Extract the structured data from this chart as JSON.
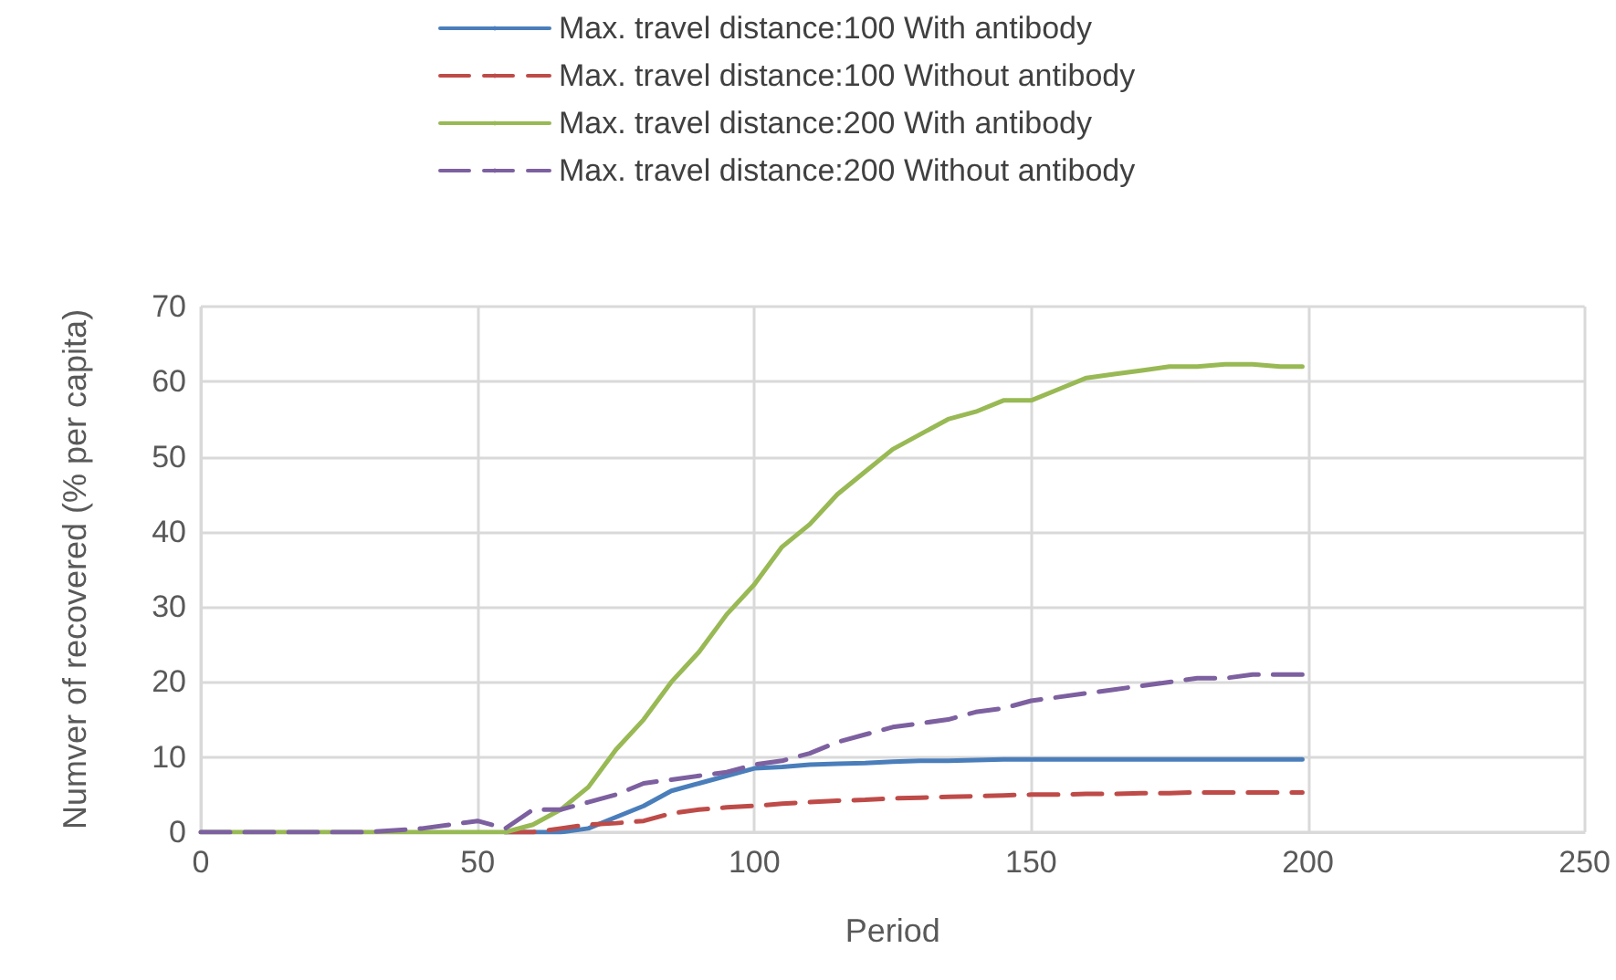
{
  "chart_data": {
    "type": "line",
    "xlabel": "Period",
    "ylabel": "Numver of recovered (% per capita)",
    "x": [
      0,
      10,
      20,
      30,
      40,
      50,
      55,
      60,
      65,
      70,
      75,
      80,
      85,
      90,
      95,
      100,
      105,
      110,
      115,
      120,
      125,
      130,
      135,
      140,
      145,
      150,
      155,
      160,
      165,
      170,
      175,
      180,
      185,
      190,
      195,
      199
    ],
    "series": [
      {
        "name": "Max. travel distance:100 With antibody",
        "color": "#4a7ebb",
        "line_style": "solid",
        "values": [
          null,
          null,
          null,
          null,
          null,
          null,
          0,
          0,
          0,
          0.5,
          2,
          3.5,
          5.5,
          6.5,
          7.5,
          8.5,
          8.7,
          9,
          9.1,
          9.2,
          9.4,
          9.5,
          9.5,
          9.6,
          9.7,
          9.7,
          9.7,
          9.7,
          9.7,
          9.7,
          9.7,
          9.7,
          9.7,
          9.7,
          9.7,
          9.7
        ]
      },
      {
        "name": "Max. travel distance:100 Without antibody",
        "color": "#be4b48",
        "line_style": "dashed",
        "values": [
          null,
          null,
          null,
          null,
          null,
          null,
          0,
          0,
          0.5,
          1,
          1.2,
          1.5,
          2.5,
          3,
          3.3,
          3.5,
          3.8,
          4,
          4.2,
          4.3,
          4.5,
          4.6,
          4.7,
          4.8,
          4.9,
          5,
          5,
          5.1,
          5.1,
          5.2,
          5.2,
          5.3,
          5.3,
          5.3,
          5.3,
          5.3
        ]
      },
      {
        "name": "Max. travel distance:200 With antibody",
        "color": "#98b954",
        "line_style": "solid",
        "values": [
          0,
          0,
          0,
          0,
          0,
          0,
          0,
          1,
          3,
          6,
          11,
          15,
          20,
          24,
          29,
          33,
          38,
          41,
          45,
          48,
          51,
          53,
          55,
          56,
          57.5,
          57.5,
          59,
          60.5,
          61,
          61.5,
          62,
          62,
          62.3,
          62.3,
          62,
          62
        ]
      },
      {
        "name": "Max. travel distance:200 Without antibody",
        "color": "#7d60a0",
        "line_style": "dashed",
        "values": [
          0,
          0,
          0,
          0,
          0.5,
          1.5,
          0.5,
          3,
          3,
          4,
          5,
          6.5,
          7,
          7.5,
          8,
          9,
          9.5,
          10.5,
          12,
          13,
          14,
          14.5,
          15,
          16,
          16.5,
          17.5,
          18,
          18.5,
          19,
          19.5,
          20,
          20.5,
          20.5,
          21,
          21,
          21
        ]
      }
    ],
    "xlim": [
      0,
      250
    ],
    "xticks": [
      0,
      50,
      100,
      150,
      200,
      250
    ],
    "ylim": [
      0,
      70
    ],
    "yticks": [
      0,
      10,
      20,
      30,
      40,
      50,
      60,
      70
    ],
    "grid": true,
    "legend": "top",
    "marker": "none"
  }
}
